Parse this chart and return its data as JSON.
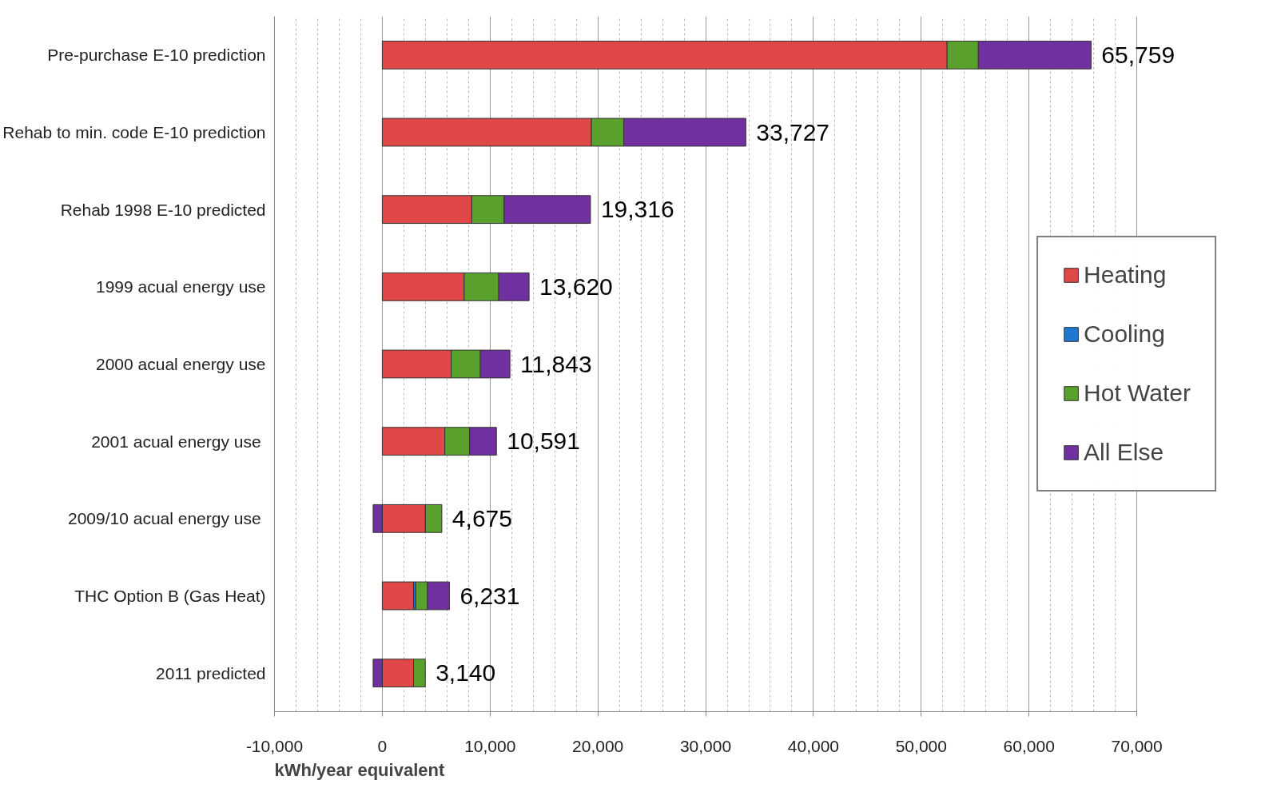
{
  "chart_data": {
    "type": "bar",
    "orientation": "horizontal",
    "stacked": true,
    "xlabel": "kWh/year equivalent",
    "categories": [
      "Pre-purchase E-10 prediction",
      "Rehab to min. code E-10 prediction",
      "Rehab 1998 E-10 predicted",
      "1999 acual energy use",
      "2000 acual energy use",
      "2001  acual energy use",
      "2009/10  acual energy use",
      "THC Option B (Gas Heat)",
      "2011 predicted"
    ],
    "series": [
      {
        "name": "Heating",
        "color": "#e04848",
        "values": [
          52400,
          19400,
          8300,
          7600,
          6400,
          5800,
          4000,
          2900,
          2900
        ]
      },
      {
        "name": "Cooling",
        "color": "#1f77d0",
        "values": [
          null,
          null,
          null,
          null,
          null,
          null,
          null,
          200,
          null
        ]
      },
      {
        "name": "Hot Water",
        "color": "#5aa02c",
        "values": [
          2900,
          3000,
          3000,
          3200,
          2700,
          2300,
          1525,
          1100,
          1090
        ]
      },
      {
        "name": "All Else",
        "color": "#7030a0",
        "values": [
          10459,
          11327,
          8016,
          2820,
          2743,
          2491,
          -850,
          2031,
          -850
        ]
      }
    ],
    "totals": [
      "65,759",
      "33,727",
      "19,316",
      "13,620",
      "11,843",
      "10,591",
      "4,675",
      "6,231",
      "3,140"
    ],
    "xlim": [
      -10000,
      70000
    ],
    "xticks": [
      {
        "value": -10000,
        "label": "-10,000"
      },
      0,
      {
        "value": 10000,
        "label": "10,000"
      },
      {
        "value": 20000,
        "label": "20,000"
      },
      {
        "value": 30000,
        "label": "30,000"
      },
      {
        "value": 40000,
        "label": "40,000"
      },
      {
        "value": 50000,
        "label": "50,000"
      },
      {
        "value": 60000,
        "label": "60,000"
      },
      {
        "value": 70000,
        "label": "70,000"
      }
    ],
    "grid": "x",
    "legend": "right"
  }
}
